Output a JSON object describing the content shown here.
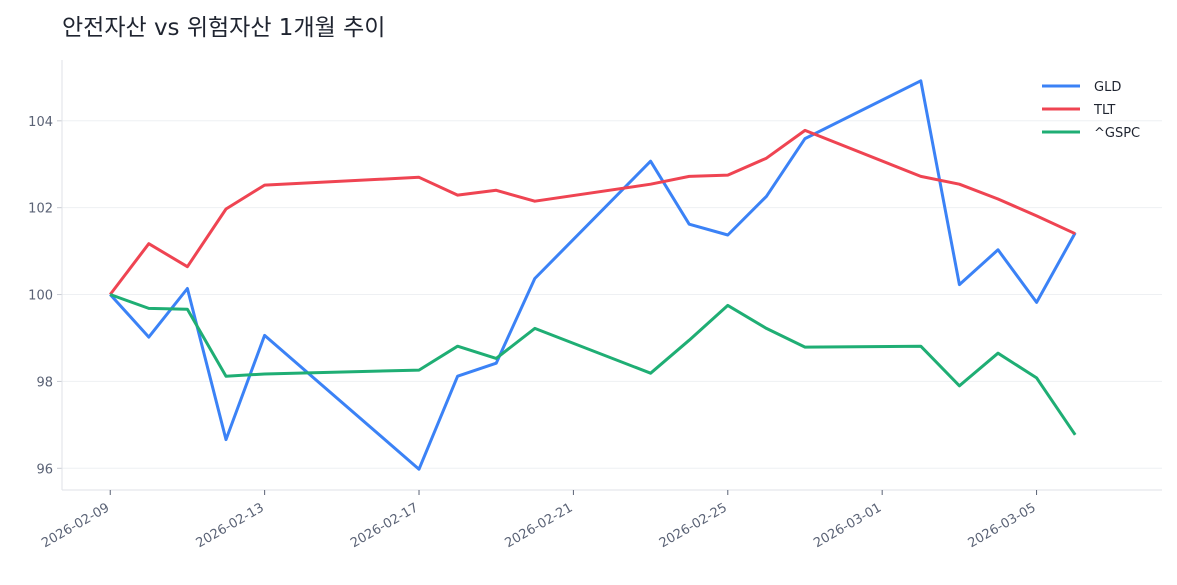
{
  "chart_data": {
    "type": "line",
    "title": "안전자산 vs 위험자산 1개월 추이",
    "xlabel": "",
    "ylabel": "",
    "x": [
      "2026-02-09",
      "2026-02-10",
      "2026-02-11",
      "2026-02-12",
      "2026-02-13",
      "2026-02-17",
      "2026-02-18",
      "2026-02-19",
      "2026-02-20",
      "2026-02-23",
      "2026-02-24",
      "2026-02-25",
      "2026-02-26",
      "2026-02-27",
      "2026-03-02",
      "2026-03-03",
      "2026-03-04",
      "2026-03-05",
      "2026-03-06"
    ],
    "xlim": [
      "2026-02-07T18:00",
      "2026-03-08T06:00"
    ],
    "ylim": [
      95.5,
      105.4
    ],
    "x_ticks": [
      "2026-02-09",
      "2026-02-13",
      "2026-02-17",
      "2026-02-21",
      "2026-02-25",
      "2026-03-01",
      "2026-03-05"
    ],
    "y_ticks": [
      96,
      98,
      100,
      102,
      104
    ],
    "grid": "horizontal",
    "legend_position": "top-right",
    "series": [
      {
        "name": "GLD",
        "color": "#3b82f6",
        "values": [
          100,
          99.02,
          100.14,
          96.66,
          99.06,
          95.98,
          98.12,
          98.42,
          100.37,
          103.07,
          101.62,
          101.37,
          102.26,
          103.59,
          104.92,
          100.23,
          101.03,
          99.82,
          101.42
        ]
      },
      {
        "name": "TLT",
        "color": "#ef4452",
        "values": [
          100,
          101.17,
          100.64,
          101.97,
          102.52,
          102.7,
          102.29,
          102.4,
          102.15,
          102.54,
          102.72,
          102.75,
          103.14,
          103.78,
          102.72,
          102.54,
          102.2,
          101.81,
          101.4
        ]
      },
      {
        "name": "^GSPC",
        "color": "#1fae74",
        "values": [
          100,
          99.68,
          99.66,
          98.12,
          98.17,
          98.26,
          98.81,
          98.53,
          99.22,
          98.19,
          98.95,
          99.75,
          99.22,
          98.79,
          98.81,
          97.9,
          98.65,
          98.08,
          96.77
        ]
      }
    ]
  }
}
